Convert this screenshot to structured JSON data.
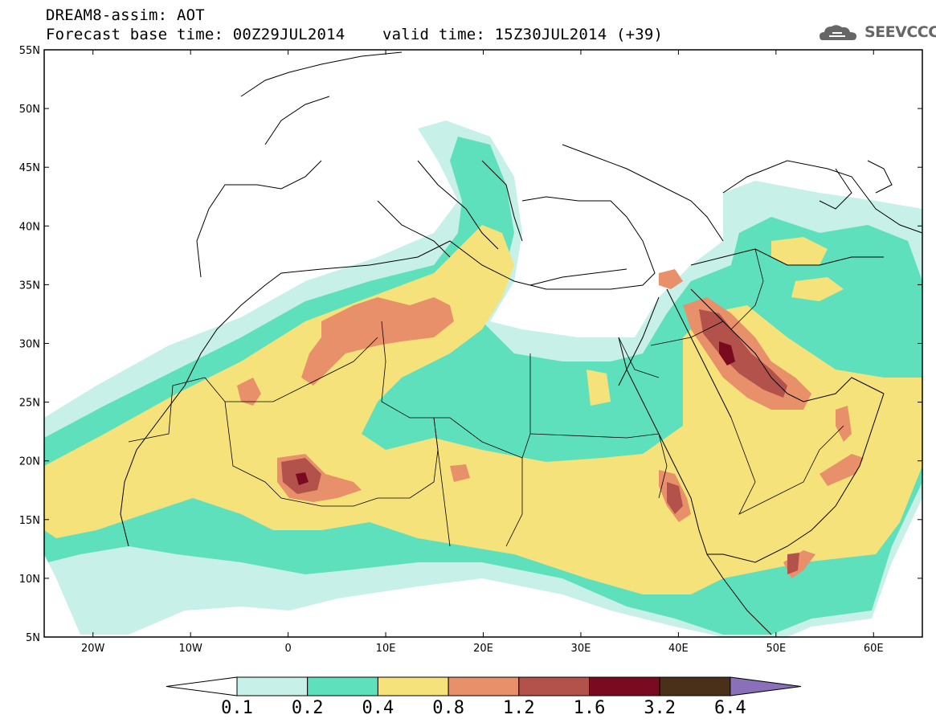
{
  "header": {
    "line1": "DREAM8-assim: AOT",
    "line2": "Forecast base time: 00Z29JUL2014    valid time: 15Z30JUL2014 (+39)"
  },
  "logo": {
    "text": "SEEVCCC",
    "icon": "cloud-icon"
  },
  "map": {
    "lon_range": [
      -25,
      65
    ],
    "lat_range": [
      5,
      55
    ],
    "lat_labels": [
      "55N",
      "50N",
      "45N",
      "40N",
      "35N",
      "30N",
      "25N",
      "20N",
      "15N",
      "10N",
      "5N"
    ],
    "lon_labels": [
      "20W",
      "10W",
      "0",
      "10E",
      "20E",
      "30E",
      "40E",
      "50E",
      "60E"
    ]
  },
  "colorbar": {
    "levels": [
      "0.1",
      "0.2",
      "0.4",
      "0.8",
      "1.2",
      "1.6",
      "3.2",
      "6.4"
    ],
    "colors": [
      "#ffffff",
      "#c6f0e8",
      "#5fe0bc",
      "#f5e27a",
      "#e8906a",
      "#b2524a",
      "#7a0a20",
      "#4a3018",
      "#8a70b8"
    ]
  },
  "colors": {
    "c01": "#c6f0e8",
    "c02": "#5fe0bc",
    "c04": "#f5e27a",
    "c08": "#e8906a",
    "c12": "#b2524a",
    "c16": "#7a0a20"
  }
}
